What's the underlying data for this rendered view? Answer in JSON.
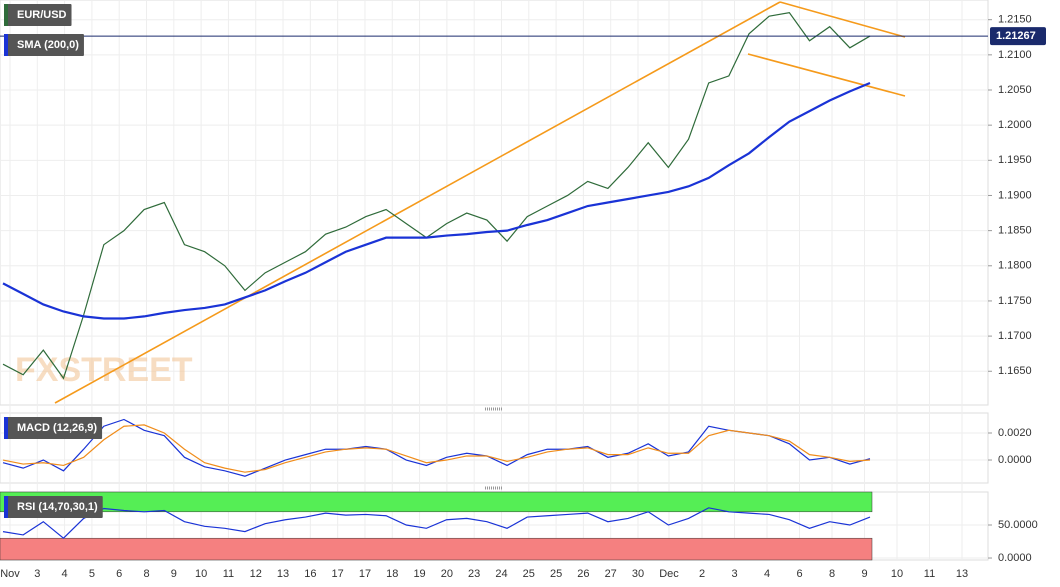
{
  "chart_data": [
    {
      "type": "line",
      "panel": "price",
      "series": [
        {
          "name": "EUR/USD",
          "color": "#2f6b3a",
          "values": [
            1.166,
            1.1645,
            1.168,
            1.164,
            1.173,
            1.183,
            1.185,
            1.188,
            1.189,
            1.183,
            1.182,
            1.18,
            1.1765,
            1.179,
            1.1805,
            1.182,
            1.1845,
            1.1855,
            1.187,
            1.188,
            1.186,
            1.184,
            1.186,
            1.1875,
            1.1865,
            1.1835,
            1.187,
            1.1885,
            1.19,
            1.192,
            1.191,
            1.194,
            1.1975,
            1.194,
            1.198,
            1.206,
            1.207,
            1.213,
            1.2155,
            1.216,
            1.212,
            1.214,
            1.211,
            1.21267
          ]
        },
        {
          "name": "SMA (200,0)",
          "color": "#1a33d6",
          "values": [
            1.1775,
            1.176,
            1.1745,
            1.1735,
            1.1728,
            1.1725,
            1.1725,
            1.1728,
            1.1733,
            1.1737,
            1.174,
            1.1745,
            1.1755,
            1.1765,
            1.1778,
            1.179,
            1.1805,
            1.182,
            1.183,
            1.184,
            1.184,
            1.184,
            1.1843,
            1.1845,
            1.1848,
            1.185,
            1.1858,
            1.1865,
            1.1875,
            1.1885,
            1.189,
            1.1895,
            1.19,
            1.1905,
            1.1913,
            1.1925,
            1.1943,
            1.196,
            1.1983,
            1.2005,
            1.202,
            1.2035,
            1.2048,
            1.206
          ]
        }
      ],
      "last_price": 1.21267,
      "watermark": "FXSTREET",
      "ylim": [
        1.1602,
        1.2178
      ],
      "yticks": [
        {
          "value": 1.165,
          "label": "1.1650"
        },
        {
          "value": 1.17,
          "label": "1.1700"
        },
        {
          "value": 1.175,
          "label": "1.1750"
        },
        {
          "value": 1.18,
          "label": "1.1800"
        },
        {
          "value": 1.185,
          "label": "1.1850"
        },
        {
          "value": 1.19,
          "label": "1.1900"
        },
        {
          "value": 1.195,
          "label": "1.1950"
        },
        {
          "value": 1.2,
          "label": "1.2000"
        },
        {
          "value": 1.205,
          "label": "1.2050"
        },
        {
          "value": 1.21,
          "label": "1.2100"
        },
        {
          "value": 1.215,
          "label": "1.2150"
        }
      ]
    },
    {
      "type": "line",
      "panel": "macd",
      "series": [
        {
          "name": "MACD (12,26,9)",
          "color": "#1a33d6",
          "values": [
            -0.0002,
            -0.0006,
            0.0,
            -0.0008,
            0.0008,
            0.0025,
            0.003,
            0.0022,
            0.0018,
            0.0002,
            -0.0005,
            -0.0008,
            -0.0012,
            -0.0006,
            0.0,
            0.0004,
            0.0008,
            0.0008,
            0.001,
            0.0008,
            0.0,
            -0.0004,
            0.0002,
            0.0005,
            0.0003,
            -0.0004,
            0.0004,
            0.0008,
            0.0008,
            0.001,
            0.0002,
            0.0005,
            0.0012,
            0.0003,
            0.0006,
            0.0025,
            0.0022,
            0.002,
            0.0018,
            0.0012,
            0.0,
            0.0002,
            -0.0003,
            0.0001
          ]
        },
        {
          "color": "#f08c1a",
          "values": [
            0.0,
            -0.0003,
            -0.0002,
            -0.0004,
            0.0002,
            0.0015,
            0.0025,
            0.0026,
            0.002,
            0.0008,
            -0.0002,
            -0.0006,
            -0.0009,
            -0.0007,
            -0.0002,
            0.0002,
            0.0006,
            0.0008,
            0.0009,
            0.0008,
            0.0003,
            -0.0002,
            0.0,
            0.0003,
            0.0003,
            -0.0001,
            0.0002,
            0.0006,
            0.0008,
            0.0009,
            0.0004,
            0.0004,
            0.0009,
            0.0005,
            0.0005,
            0.0018,
            0.0022,
            0.002,
            0.0018,
            0.0014,
            0.0004,
            0.0002,
            -0.0001,
            0.0
          ]
        }
      ],
      "ylim": [
        -0.0017,
        0.00348
      ],
      "yticks": [
        {
          "value": 0,
          "label": "0.0000"
        },
        {
          "value": 0.002,
          "label": "0.0020"
        }
      ]
    },
    {
      "type": "line",
      "panel": "rsi",
      "series": [
        {
          "name": "RSI (14,70,30,1)",
          "color": "#1a33d6",
          "values": [
            40,
            35,
            55,
            30,
            60,
            75,
            72,
            70,
            72,
            55,
            48,
            45,
            40,
            52,
            58,
            62,
            68,
            65,
            66,
            64,
            50,
            45,
            58,
            60,
            55,
            45,
            62,
            64,
            66,
            68,
            55,
            60,
            70,
            50,
            60,
            76,
            70,
            68,
            66,
            58,
            45,
            55,
            50,
            62
          ]
        }
      ],
      "bands": {
        "upper": 70,
        "lower": 30
      },
      "ylim": [
        -3,
        100
      ],
      "yticks": [
        {
          "value": 0,
          "label": "0.0000"
        },
        {
          "value": 50,
          "label": "50.0000"
        }
      ],
      "x_labels": [
        "Nov",
        "3",
        "4",
        "5",
        "6",
        "8",
        "9",
        "10",
        "11",
        "12",
        "13",
        "16",
        "17",
        "17",
        "18",
        "19",
        "20",
        "23",
        "24",
        "25",
        "25",
        "26",
        "27",
        "30",
        "Dec",
        "2",
        "3",
        "4",
        "6",
        "8",
        "9",
        "10",
        "11",
        "13"
      ]
    }
  ]
}
